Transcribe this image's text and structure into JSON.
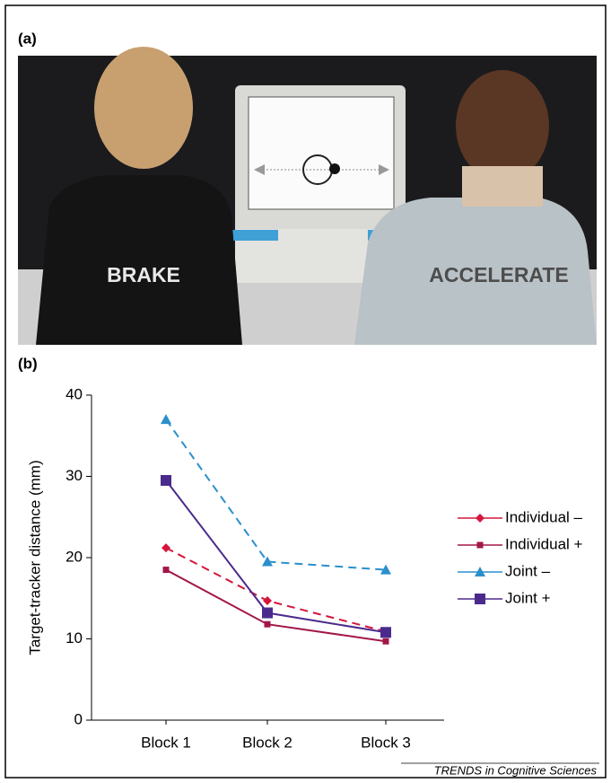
{
  "panel_a": {
    "label": "(a)",
    "left_shirt": "BRAKE",
    "right_shirt": "ACCELERATE"
  },
  "panel_b_label": "(b)",
  "footer": "TRENDS in Cognitive Sciences",
  "chart_data": {
    "type": "line",
    "y_label": "Target-tracker distance (mm)",
    "categories": [
      "Block 1",
      "Block 2",
      "Block 3"
    ],
    "ylim": [
      0,
      40
    ],
    "yticks": [
      0,
      10,
      20,
      30,
      40
    ],
    "series": [
      {
        "name": "Individual –",
        "color": "#d4163c",
        "dashed": true,
        "marker": "diamond",
        "values": [
          21.2,
          14.7,
          10.9
        ]
      },
      {
        "name": "Individual +",
        "color": "#a3164a",
        "dashed": false,
        "marker": "small-square",
        "values": [
          18.5,
          11.8,
          9.7
        ]
      },
      {
        "name": "Joint –",
        "color": "#2b8fcc",
        "dashed": true,
        "marker": "triangle",
        "values": [
          37,
          19.5,
          18.5
        ]
      },
      {
        "name": "Joint +",
        "color": "#4a2b8d",
        "dashed": false,
        "marker": "square",
        "values": [
          29.5,
          13.2,
          10.8
        ]
      }
    ]
  }
}
